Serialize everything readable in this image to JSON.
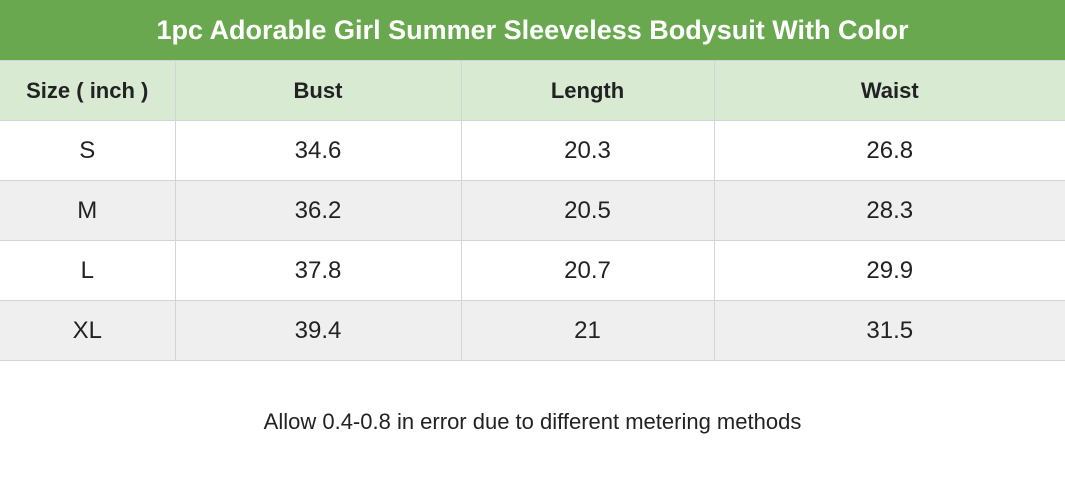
{
  "header": {
    "title": "1pc Adorable Girl Summer Sleeveless Bodysuit With Color"
  },
  "table": {
    "columns": [
      "Size ( inch )",
      "Bust",
      "Length",
      "Waist"
    ],
    "rows": [
      [
        "S",
        "34.6",
        "20.3",
        "26.8"
      ],
      [
        "M",
        "36.2",
        "20.5",
        "28.3"
      ],
      [
        "L",
        "37.8",
        "20.7",
        "29.9"
      ],
      [
        "XL",
        "39.4",
        "21",
        "31.5"
      ]
    ]
  },
  "footer": {
    "note": "Allow 0.4-0.8 in error due to different metering methods"
  }
}
